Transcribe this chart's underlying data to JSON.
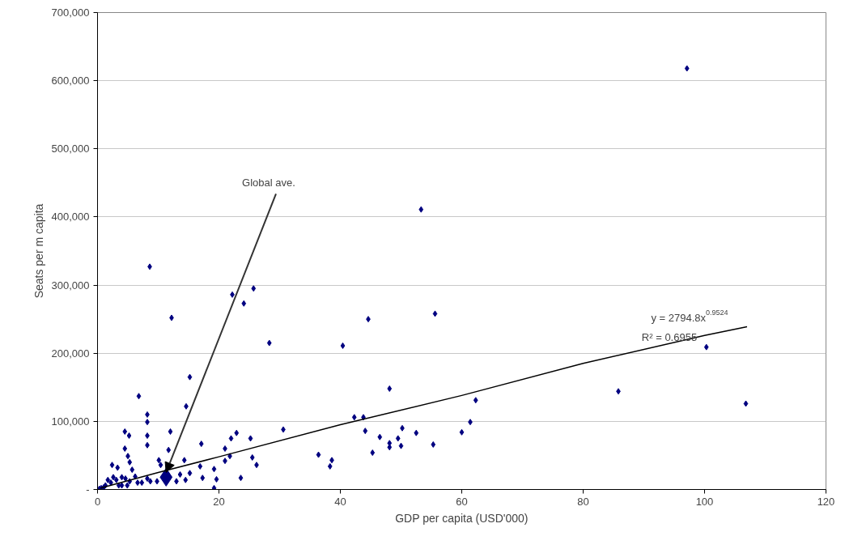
{
  "chart_data": {
    "type": "scatter",
    "xlabel": "GDP per capita (USD'000)",
    "ylabel": "Seats per m capita",
    "xlim": [
      0,
      120
    ],
    "xticks": [
      0,
      20,
      40,
      60,
      80,
      100,
      120
    ],
    "ylim": [
      0,
      700000
    ],
    "yticks": [
      {
        "value": 0,
        "label": "-"
      },
      {
        "value": 100000,
        "label": "100,000"
      },
      {
        "value": 200000,
        "label": "200,000"
      },
      {
        "value": 300000,
        "label": "300,000"
      },
      {
        "value": 400000,
        "label": "400,000"
      },
      {
        "value": 500000,
        "label": "500,000"
      },
      {
        "value": 600000,
        "label": "600,000"
      },
      {
        "value": 700000,
        "label": "700,000"
      }
    ],
    "grid": "y",
    "annotations": [
      {
        "text": "Global ave.",
        "x": 11.3,
        "y": 18000
      },
      "y = 2794.8x$^{0.9524}$",
      "R² = 0.6955"
    ],
    "series": [
      {
        "color": "#000080",
        "marker": "diamond",
        "x": [
          97.1,
          53.3,
          8.6,
          22.2,
          25.7,
          24.1,
          28.3,
          40.4,
          44.6,
          55.6,
          48.1,
          42.3,
          43.8,
          44.1,
          46.5,
          48.1,
          48.1,
          49.5,
          50.0,
          50.2,
          52.5,
          55.3,
          45.3,
          60.0,
          61.4,
          62.3,
          36.4,
          38.6,
          38.3,
          30.6,
          22.9,
          22.0,
          25.2,
          21.0,
          21.8,
          21.0,
          25.5,
          26.2,
          23.6,
          19.2,
          19.6,
          19.2,
          85.8,
          100.3,
          106.8,
          12.2,
          15.2,
          14.6,
          6.8,
          8.2,
          8.2,
          8.2,
          8.2,
          4.5,
          5.2,
          4.5,
          5.0,
          5.3,
          5.7,
          2.4,
          3.3,
          12.0,
          11.7,
          10.1,
          10.4,
          14.3,
          17.1,
          15.2,
          13.6,
          14.5,
          17.3,
          16.9,
          13.0,
          9.8,
          8.7,
          7.3,
          6.2,
          6.6,
          4.9,
          4.0,
          4.0,
          3.1,
          2.2,
          1.3,
          0.6,
          4.6,
          5.3,
          8.2,
          1.7,
          2.6,
          3.5,
          0.3,
          1.0
        ],
        "values": [
          618000,
          411000,
          327000,
          286000,
          295000,
          273000,
          215000,
          211000,
          250000,
          258000,
          148000,
          106000,
          106000,
          86000,
          77000,
          68000,
          62000,
          75000,
          64000,
          90000,
          83000,
          66000,
          54000,
          84000,
          99000,
          131000,
          51000,
          43000,
          34000,
          88000,
          83000,
          75000,
          75000,
          60000,
          49000,
          42000,
          47000,
          36000,
          17000,
          30000,
          15000,
          2000,
          144000,
          209000,
          126000,
          252000,
          165000,
          122000,
          137000,
          110000,
          99000,
          79000,
          65000,
          85000,
          79000,
          60000,
          49000,
          40000,
          29000,
          36000,
          32000,
          85000,
          58000,
          43000,
          36000,
          43000,
          67000,
          24000,
          22000,
          14000,
          17000,
          34000,
          12000,
          12000,
          12000,
          10000,
          19000,
          10000,
          6000,
          18000,
          6000,
          14000,
          10000,
          6000,
          2000,
          16000,
          12000,
          16000,
          14000,
          18000,
          6000,
          1000,
          3000
        ]
      },
      {
        "color": "#000080",
        "marker": "diamond",
        "x": [
          11.3
        ],
        "values": [
          18000
        ]
      },
      {
        "type": "line",
        "color": "#000000",
        "line_style": "solid",
        "x": [
          0.5,
          10,
          20,
          40,
          60,
          80,
          100,
          107
        ],
        "values": [
          2000,
          25000,
          48000,
          95000,
          138000,
          185000,
          226000,
          239000
        ]
      }
    ]
  }
}
